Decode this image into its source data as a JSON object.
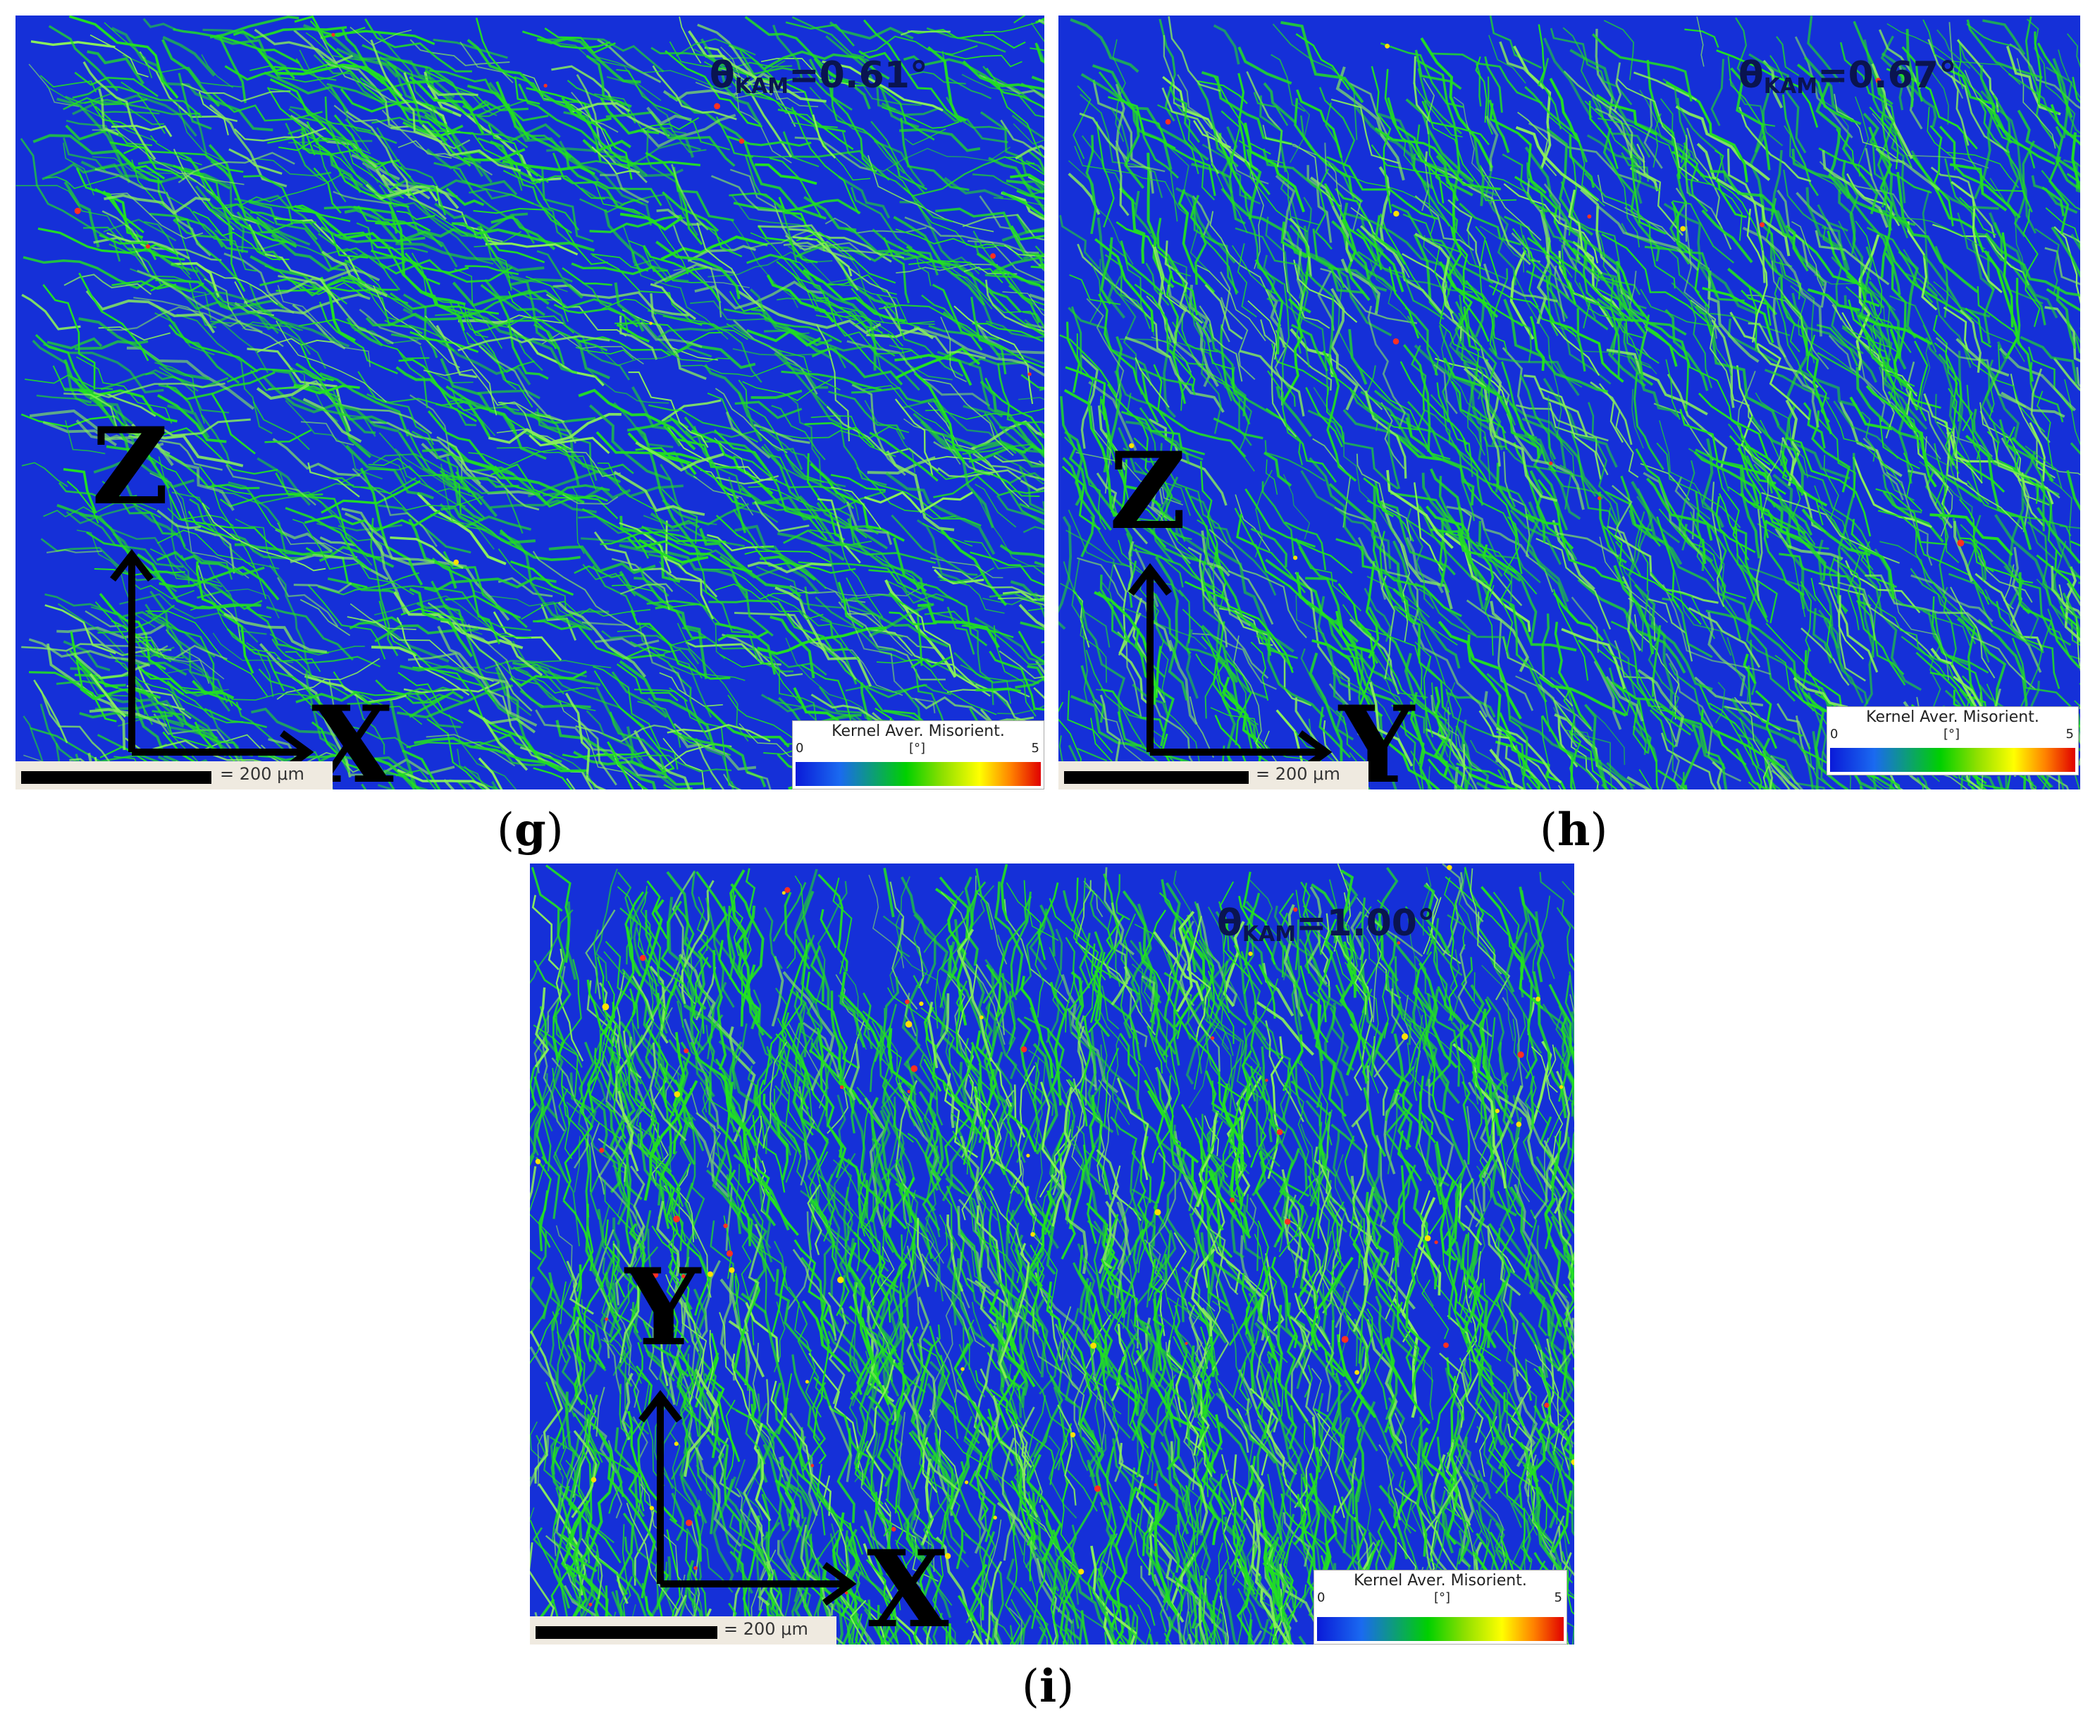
{
  "panels": [
    {
      "id": "g",
      "kam_prefix": "θ",
      "kam_sub": "KAM",
      "kam_value": "=0.61°",
      "vertical_axis": "Z",
      "horizontal_axis": "X",
      "scale_text": "= 200 μm",
      "legend_title": "Kernel Aver. Misorient.",
      "legend_min": "0",
      "legend_unit": "[°]",
      "legend_max": "5",
      "caption": "g"
    },
    {
      "id": "h",
      "kam_prefix": "θ",
      "kam_sub": "KAM",
      "kam_value": "=0.67°",
      "vertical_axis": "Z",
      "horizontal_axis": "Y",
      "scale_text": "= 200 μm",
      "legend_title": "Kernel Aver. Misorient.",
      "legend_min": "0",
      "legend_unit": "[°]",
      "legend_max": "5",
      "caption": "h"
    },
    {
      "id": "i",
      "kam_prefix": "θ",
      "kam_sub": "KAM",
      "kam_value": "=1.00°",
      "vertical_axis": "Y",
      "horizontal_axis": "X",
      "scale_text": "= 200 μm",
      "legend_title": "Kernel Aver. Misorient.",
      "legend_min": "0",
      "legend_unit": "[°]",
      "legend_max": "5",
      "caption": "i"
    }
  ],
  "colors": {
    "map_background": "#1530d8",
    "boundary_green": "#22e022",
    "boundary_light": "#8af05a",
    "hotspot_red": "#ff3020",
    "hotspot_yellow": "#ffe000"
  }
}
